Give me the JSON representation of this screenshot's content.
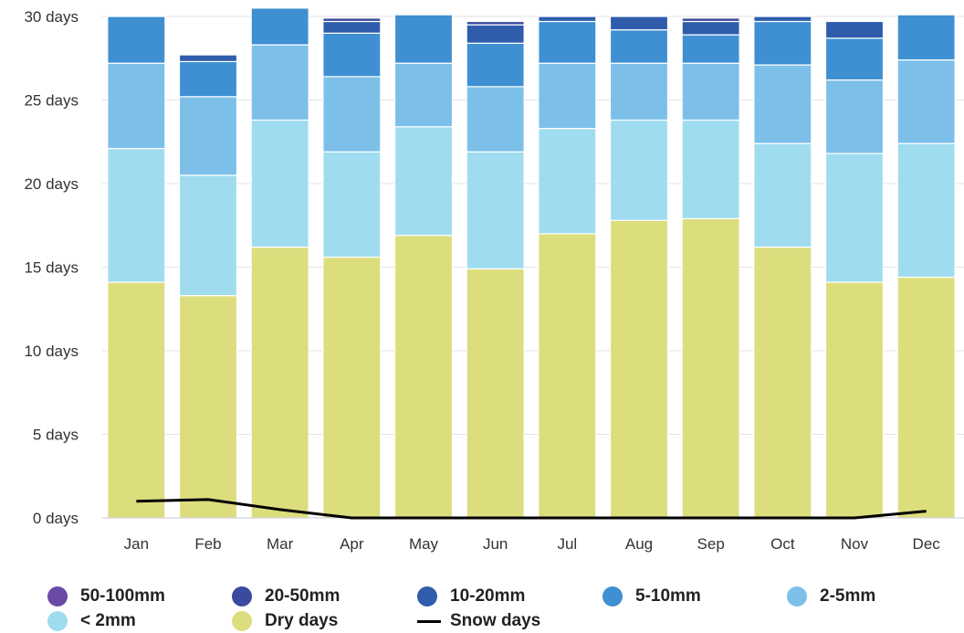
{
  "chart_data": {
    "type": "bar",
    "stacked": true,
    "categories": [
      "Jan",
      "Feb",
      "Mar",
      "Apr",
      "May",
      "Jun",
      "Jul",
      "Aug",
      "Sep",
      "Oct",
      "Nov",
      "Dec"
    ],
    "y_ticks": [
      "0 days",
      "5 days",
      "10 days",
      "15 days",
      "20 days",
      "25 days",
      "30 days"
    ],
    "ylim": [
      0,
      30
    ],
    "grid": true,
    "legend_position": "bottom",
    "series": [
      {
        "name": "Dry days",
        "color": "#dcdd7d",
        "values": [
          14.1,
          13.3,
          16.2,
          15.6,
          16.9,
          14.9,
          17.0,
          17.8,
          17.9,
          16.2,
          14.1,
          14.4
        ]
      },
      {
        "name": "< 2mm",
        "color": "#a0dcf0",
        "values": [
          8.0,
          7.2,
          7.6,
          6.3,
          6.5,
          7.0,
          6.3,
          6.0,
          5.9,
          6.2,
          7.7,
          8.0
        ]
      },
      {
        "name": "2-5mm",
        "color": "#7cc0ea",
        "values": [
          5.1,
          4.7,
          4.5,
          4.5,
          3.8,
          3.9,
          3.9,
          3.4,
          3.4,
          4.7,
          4.4,
          5.0
        ]
      },
      {
        "name": "5-10mm",
        "color": "#3e90d2",
        "values": [
          2.8,
          2.1,
          2.2,
          2.6,
          2.9,
          2.6,
          2.5,
          2.0,
          1.7,
          2.6,
          2.5,
          2.7
        ]
      },
      {
        "name": "10-20mm",
        "color": "#2f5dac",
        "values": [
          0.0,
          0.4,
          0.0,
          0.7,
          0.0,
          1.1,
          0.3,
          0.8,
          0.8,
          0.3,
          1.0,
          0.0
        ]
      },
      {
        "name": "20-50mm",
        "color": "#3a4a9e",
        "values": [
          0.0,
          0.0,
          0.0,
          0.2,
          0.0,
          0.2,
          0.0,
          0.0,
          0.2,
          0.0,
          0.0,
          0.0
        ]
      },
      {
        "name": "50-100mm",
        "color": "#6b4aa6",
        "values": [
          0.0,
          0.0,
          0.0,
          0.0,
          0.0,
          0.0,
          0.0,
          0.0,
          0.0,
          0.0,
          0.0,
          0.0
        ]
      }
    ],
    "line_series": {
      "name": "Snow days",
      "color": "#000000",
      "values": [
        1.0,
        1.1,
        0.5,
        0.0,
        0.0,
        0.0,
        0.0,
        0.0,
        0.0,
        0.0,
        0.0,
        0.4
      ]
    }
  },
  "legend": {
    "row1": [
      {
        "label": "50-100mm",
        "color": "#6b4aa6"
      },
      {
        "label": "20-50mm",
        "color": "#3a4a9e"
      },
      {
        "label": "10-20mm",
        "color": "#2f5dac"
      },
      {
        "label": "5-10mm",
        "color": "#3e90d2"
      },
      {
        "label": "2-5mm",
        "color": "#7cc0ea"
      }
    ],
    "row2": [
      {
        "label": "< 2mm",
        "color": "#a0dcf0"
      },
      {
        "label": "Dry days",
        "color": "#dcdd7d"
      },
      {
        "label": "Snow days",
        "color": "#000000"
      }
    ]
  }
}
